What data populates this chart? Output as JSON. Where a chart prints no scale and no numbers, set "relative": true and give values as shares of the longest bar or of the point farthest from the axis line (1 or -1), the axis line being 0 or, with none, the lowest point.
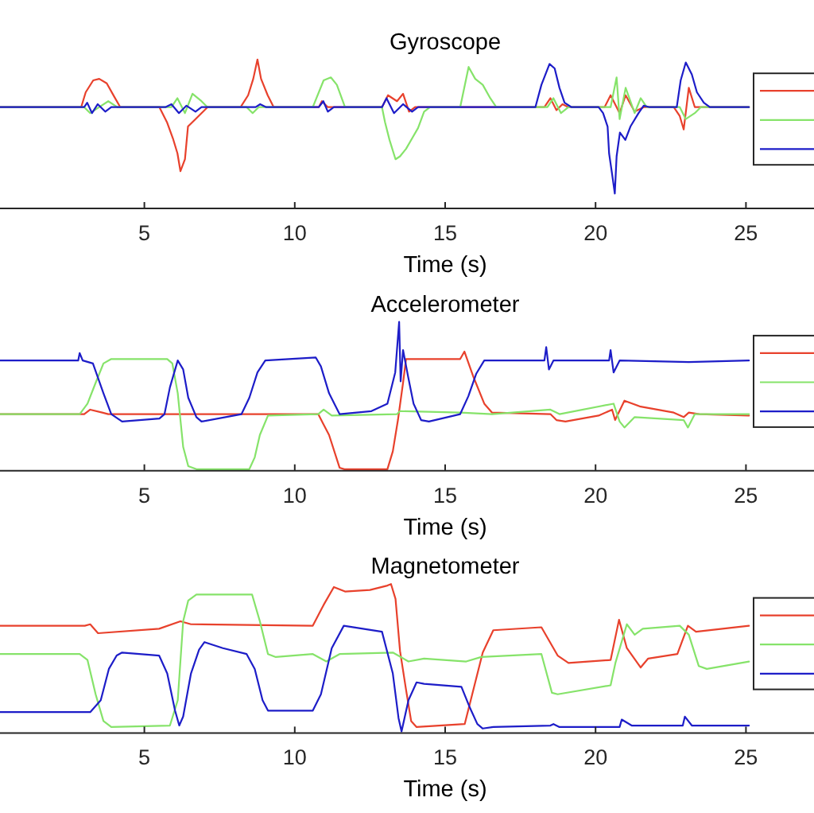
{
  "chart_data": [
    {
      "type": "line",
      "title": "Gyroscope",
      "xlabel": "Time (s)",
      "xlim": [
        0,
        30
      ],
      "xticks": [
        5,
        10,
        15,
        20,
        25
      ],
      "relative": true,
      "series": [
        {
          "color": "#e8412c",
          "x": [
            0,
            2.9,
            3.05,
            3.3,
            3.5,
            3.75,
            4.0,
            4.2,
            5.5,
            5.75,
            5.95,
            6.1,
            6.2,
            6.35,
            6.45,
            6.7,
            6.9,
            7.1,
            8.2,
            8.45,
            8.62,
            8.76,
            8.88,
            9.1,
            9.3,
            10.8,
            10.9,
            11.1,
            12.9,
            13.1,
            13.4,
            13.6,
            13.8,
            14.0,
            18.3,
            18.5,
            18.7,
            18.9,
            19.1,
            20.3,
            20.5,
            20.8,
            21.0,
            21.3,
            21.6,
            22.6,
            22.8,
            22.93,
            23.1,
            23.3,
            25.1
          ],
          "values": [
            0.68,
            0.68,
            0.78,
            0.86,
            0.87,
            0.84,
            0.75,
            0.68,
            0.68,
            0.58,
            0.47,
            0.37,
            0.25,
            0.33,
            0.55,
            0.6,
            0.64,
            0.68,
            0.68,
            0.76,
            0.87,
            1.0,
            0.87,
            0.76,
            0.68,
            0.68,
            0.72,
            0.68,
            0.68,
            0.76,
            0.72,
            0.77,
            0.65,
            0.68,
            0.68,
            0.74,
            0.66,
            0.7,
            0.68,
            0.68,
            0.76,
            0.64,
            0.76,
            0.65,
            0.68,
            0.68,
            0.62,
            0.53,
            0.81,
            0.68,
            0.68
          ]
        },
        {
          "color": "#86e36a",
          "x": [
            0,
            3.0,
            3.2,
            3.5,
            3.8,
            4.1,
            5.9,
            6.1,
            6.35,
            6.6,
            6.9,
            7.1,
            8.4,
            8.6,
            8.8,
            10.6,
            10.96,
            11.2,
            11.4,
            11.67,
            12.9,
            13.0,
            13.15,
            13.35,
            13.5,
            13.7,
            13.9,
            14.1,
            14.3,
            14.5,
            15.5,
            15.78,
            16.0,
            16.25,
            16.5,
            16.7,
            18.4,
            18.6,
            18.85,
            19.1,
            20.5,
            20.7,
            20.8,
            21.0,
            21.3,
            21.5,
            21.7,
            22.8,
            23.0,
            23.3,
            23.5,
            25.1
          ],
          "values": [
            0.68,
            0.68,
            0.64,
            0.68,
            0.72,
            0.68,
            0.68,
            0.74,
            0.64,
            0.77,
            0.72,
            0.68,
            0.68,
            0.64,
            0.68,
            0.68,
            0.86,
            0.88,
            0.83,
            0.68,
            0.68,
            0.58,
            0.46,
            0.33,
            0.35,
            0.4,
            0.47,
            0.54,
            0.65,
            0.68,
            0.68,
            0.95,
            0.87,
            0.83,
            0.74,
            0.68,
            0.68,
            0.74,
            0.64,
            0.68,
            0.68,
            0.88,
            0.6,
            0.81,
            0.64,
            0.74,
            0.68,
            0.68,
            0.6,
            0.64,
            0.68,
            0.68
          ]
        },
        {
          "color": "#1d1dc8",
          "x": [
            0,
            3.0,
            3.1,
            3.26,
            3.45,
            3.7,
            3.9,
            5.7,
            5.9,
            6.15,
            6.4,
            6.7,
            6.9,
            8.7,
            8.85,
            9.05,
            10.8,
            10.95,
            11.1,
            11.3,
            12.9,
            13.05,
            13.3,
            13.6,
            13.9,
            14.1,
            18.0,
            18.2,
            18.47,
            18.64,
            18.8,
            18.97,
            19.2,
            20.1,
            20.25,
            20.4,
            20.45,
            20.55,
            20.64,
            20.7,
            20.81,
            20.99,
            21.16,
            21.43,
            21.6,
            21.8,
            22.7,
            22.83,
            23.0,
            23.2,
            23.37,
            23.6,
            23.8,
            25.1
          ],
          "values": [
            0.68,
            0.68,
            0.71,
            0.64,
            0.7,
            0.65,
            0.68,
            0.68,
            0.7,
            0.64,
            0.69,
            0.65,
            0.68,
            0.68,
            0.7,
            0.68,
            0.68,
            0.72,
            0.65,
            0.68,
            0.68,
            0.74,
            0.64,
            0.7,
            0.65,
            0.68,
            0.68,
            0.83,
            0.97,
            0.94,
            0.81,
            0.71,
            0.68,
            0.68,
            0.64,
            0.55,
            0.37,
            0.23,
            0.1,
            0.35,
            0.51,
            0.46,
            0.55,
            0.64,
            0.69,
            0.68,
            0.68,
            0.86,
            0.98,
            0.9,
            0.78,
            0.71,
            0.68,
            0.68
          ]
        }
      ]
    },
    {
      "type": "line",
      "title": "Accelerometer",
      "xlabel": "Time (s)",
      "xlim": [
        0,
        30
      ],
      "xticks": [
        5,
        10,
        15,
        20,
        25
      ],
      "relative": true,
      "series": [
        {
          "color": "#e8412c",
          "x": [
            0,
            3.0,
            3.2,
            3.6,
            3.8,
            10.78,
            10.96,
            11.14,
            11.49,
            11.65,
            13.08,
            13.26,
            13.43,
            13.6,
            13.7,
            15.5,
            15.64,
            15.94,
            16.3,
            16.56,
            18.5,
            18.7,
            19.0,
            20.1,
            20.55,
            20.65,
            20.96,
            21.5,
            22.6,
            22.93,
            23.1,
            23.45,
            25.1
          ],
          "values": [
            0.38,
            0.38,
            0.41,
            0.39,
            0.38,
            0.38,
            0.31,
            0.24,
            0.02,
            0.01,
            0.01,
            0.13,
            0.34,
            0.59,
            0.75,
            0.75,
            0.8,
            0.63,
            0.45,
            0.39,
            0.38,
            0.34,
            0.33,
            0.37,
            0.41,
            0.34,
            0.47,
            0.43,
            0.39,
            0.36,
            0.39,
            0.38,
            0.37
          ]
        },
        {
          "color": "#86e36a",
          "x": [
            0,
            2.85,
            3.11,
            3.38,
            3.64,
            3.9,
            5.76,
            5.93,
            6.11,
            6.29,
            6.46,
            6.73,
            8.49,
            8.67,
            8.84,
            9.11,
            10.78,
            10.96,
            11.23,
            13.4,
            13.5,
            15.5,
            16.56,
            18.5,
            18.8,
            20.6,
            20.8,
            20.96,
            21.3,
            22.93,
            23.07,
            23.3,
            25.1
          ],
          "values": [
            0.38,
            0.38,
            0.45,
            0.59,
            0.72,
            0.75,
            0.75,
            0.72,
            0.52,
            0.16,
            0.03,
            0.01,
            0.01,
            0.09,
            0.24,
            0.37,
            0.38,
            0.41,
            0.37,
            0.38,
            0.4,
            0.39,
            0.38,
            0.41,
            0.38,
            0.45,
            0.33,
            0.29,
            0.36,
            0.34,
            0.29,
            0.38,
            0.38
          ]
        },
        {
          "color": "#1d1dc8",
          "x": [
            0,
            2.8,
            2.85,
            2.95,
            3.29,
            3.64,
            3.9,
            4.26,
            5.5,
            5.67,
            5.85,
            6.11,
            6.29,
            6.46,
            6.73,
            6.9,
            8.23,
            8.49,
            8.76,
            9.02,
            10.7,
            10.87,
            11.14,
            11.49,
            12.55,
            13.08,
            13.34,
            13.47,
            13.52,
            13.6,
            13.77,
            13.95,
            14.2,
            14.46,
            15.5,
            15.77,
            16.03,
            16.3,
            18.3,
            18.36,
            18.45,
            18.6,
            20.45,
            20.5,
            20.6,
            20.8,
            23.1,
            25.1
          ],
          "values": [
            0.74,
            0.74,
            0.79,
            0.74,
            0.72,
            0.52,
            0.38,
            0.33,
            0.35,
            0.38,
            0.56,
            0.74,
            0.68,
            0.49,
            0.36,
            0.33,
            0.38,
            0.49,
            0.66,
            0.74,
            0.76,
            0.7,
            0.52,
            0.38,
            0.4,
            0.45,
            0.66,
            1.0,
            0.6,
            0.81,
            0.63,
            0.45,
            0.34,
            0.33,
            0.38,
            0.5,
            0.65,
            0.74,
            0.74,
            0.83,
            0.68,
            0.74,
            0.74,
            0.81,
            0.66,
            0.74,
            0.73,
            0.74
          ]
        }
      ]
    },
    {
      "type": "line",
      "title": "Magnetometer",
      "xlabel": "Time (s)",
      "xlim": [
        0,
        30
      ],
      "xticks": [
        5,
        10,
        15,
        20,
        25
      ],
      "relative": true,
      "series": [
        {
          "color": "#e8412c",
          "x": [
            0,
            3.02,
            3.2,
            3.46,
            5.49,
            6.2,
            6.55,
            10.6,
            10.96,
            11.3,
            11.67,
            12.5,
            13.08,
            13.2,
            13.35,
            13.5,
            13.7,
            13.87,
            14.05,
            15.65,
            15.9,
            16.25,
            16.6,
            18.2,
            18.74,
            19.1,
            20.5,
            20.78,
            21.04,
            21.5,
            21.75,
            22.72,
            23.07,
            23.34,
            25.1
          ],
          "values": [
            0.72,
            0.72,
            0.73,
            0.67,
            0.7,
            0.75,
            0.73,
            0.72,
            0.86,
            0.98,
            0.95,
            0.96,
            0.99,
            1.0,
            0.9,
            0.55,
            0.29,
            0.08,
            0.04,
            0.06,
            0.26,
            0.54,
            0.69,
            0.71,
            0.52,
            0.47,
            0.49,
            0.76,
            0.57,
            0.44,
            0.5,
            0.53,
            0.72,
            0.68,
            0.72
          ]
        },
        {
          "color": "#86e36a",
          "x": [
            0,
            2.85,
            3.11,
            3.38,
            3.64,
            3.9,
            5.85,
            6.11,
            6.29,
            6.46,
            6.73,
            8.58,
            8.84,
            9.11,
            9.37,
            10.6,
            11.05,
            11.49,
            13.26,
            13.78,
            14.3,
            15.7,
            16.2,
            18.2,
            18.55,
            18.74,
            20.5,
            20.66,
            21.04,
            21.3,
            21.57,
            22.8,
            23.1,
            23.43,
            23.7,
            25.1
          ],
          "values": [
            0.53,
            0.53,
            0.49,
            0.26,
            0.08,
            0.04,
            0.05,
            0.22,
            0.75,
            0.89,
            0.93,
            0.93,
            0.75,
            0.53,
            0.51,
            0.53,
            0.48,
            0.53,
            0.54,
            0.48,
            0.5,
            0.48,
            0.51,
            0.53,
            0.27,
            0.26,
            0.32,
            0.47,
            0.73,
            0.66,
            0.7,
            0.72,
            0.66,
            0.45,
            0.43,
            0.48
          ]
        },
        {
          "color": "#1d1dc8",
          "x": [
            0,
            3.2,
            3.55,
            3.82,
            4.08,
            4.26,
            5.49,
            5.76,
            6.02,
            6.16,
            6.29,
            6.55,
            6.82,
            7.0,
            7.61,
            8.4,
            8.67,
            8.93,
            9.11,
            10.6,
            10.87,
            11.23,
            11.63,
            12.9,
            13.26,
            13.45,
            13.55,
            13.78,
            14.05,
            14.3,
            15.54,
            15.8,
            16.07,
            16.25,
            16.6,
            18.5,
            18.6,
            18.8,
            20.8,
            20.87,
            21.2,
            22.9,
            22.97,
            23.2,
            25.1
          ],
          "values": [
            0.14,
            0.14,
            0.22,
            0.43,
            0.52,
            0.54,
            0.52,
            0.4,
            0.15,
            0.05,
            0.11,
            0.4,
            0.56,
            0.61,
            0.57,
            0.53,
            0.43,
            0.22,
            0.15,
            0.15,
            0.26,
            0.57,
            0.72,
            0.68,
            0.4,
            0.1,
            0.01,
            0.22,
            0.34,
            0.33,
            0.31,
            0.18,
            0.06,
            0.03,
            0.04,
            0.05,
            0.06,
            0.04,
            0.04,
            0.09,
            0.05,
            0.05,
            0.11,
            0.05,
            0.05
          ]
        }
      ]
    }
  ]
}
